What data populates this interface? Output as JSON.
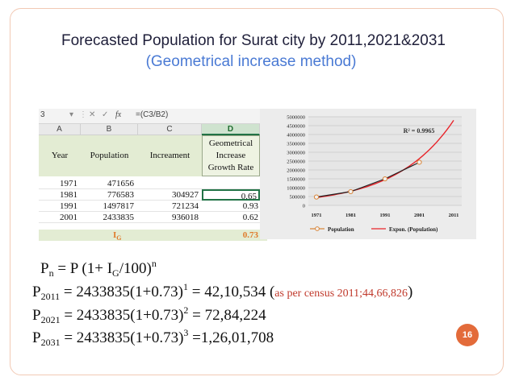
{
  "slide": {
    "title": "Forecasted Population for Surat city by 2011,2021&2031",
    "subtitle": "(Geometrical increase method)",
    "page_number": "16"
  },
  "spreadsheet": {
    "name_box": "3",
    "formula_symbol": "fx",
    "formula": "=(C3/B2)",
    "columns": [
      "A",
      "B",
      "C",
      "D"
    ],
    "headers": {
      "year": "Year",
      "population": "Population",
      "increment": "Increament",
      "growth_l1": "Geometrical",
      "growth_l2": "Increase",
      "growth_l3": "Growth Rate"
    },
    "rows": [
      {
        "year": "1971",
        "population": "471656",
        "increment": "",
        "growth": ""
      },
      {
        "year": "1981",
        "population": "776583",
        "increment": "304927",
        "growth": "0.65"
      },
      {
        "year": "1991",
        "population": "1497817",
        "increment": "721234",
        "growth": "0.93"
      },
      {
        "year": "2001",
        "population": "2433835",
        "increment": "936018",
        "growth": "0.62"
      }
    ],
    "ig_label": "I",
    "ig_sub": "G",
    "ig_value": "0.73"
  },
  "chart_data": {
    "type": "line",
    "x": [
      "1971",
      "1981",
      "1991",
      "2001",
      "2011"
    ],
    "series": [
      {
        "name": "Population",
        "values": [
          471656,
          776583,
          1497817,
          2433835,
          null
        ]
      },
      {
        "name": "Expon. (Population)",
        "values": [
          440000,
          850000,
          1520000,
          2500000,
          4800000
        ]
      }
    ],
    "y_ticks": [
      "0",
      "500000",
      "1000000",
      "1500000",
      "2000000",
      "2500000",
      "3000000",
      "3500000",
      "4000000",
      "4500000",
      "5000000"
    ],
    "ylim": [
      0,
      5000000
    ],
    "annotation": "R² = 0.9965",
    "grid": true,
    "legend_position": "bottom",
    "colors": {
      "population": "#d9863a",
      "trend": "#e8242a",
      "series_line": "#222222"
    }
  },
  "formulas": {
    "general": {
      "p": "P",
      "n": "n",
      "eq": " = P (1+ I",
      "g": "G",
      "tail": "/100)",
      "exp": "n"
    },
    "lines": [
      {
        "sub": "2011",
        "body": " = 2433835(1+0.73)",
        "exp": "1",
        "result": " = 42,10,534 (",
        "note": "as per census  2011;44,66,826",
        "close": ")"
      },
      {
        "sub": "2021",
        "body": " = 2433835(1+0.73)",
        "exp": "2",
        "result": " = 72,84,224",
        "note": "",
        "close": ""
      },
      {
        "sub": "2031",
        "body": " = 2433835(1+0.73)",
        "exp": "3",
        "result": " =1,26,01,708",
        "note": "",
        "close": ""
      }
    ],
    "p_letter": "P"
  }
}
